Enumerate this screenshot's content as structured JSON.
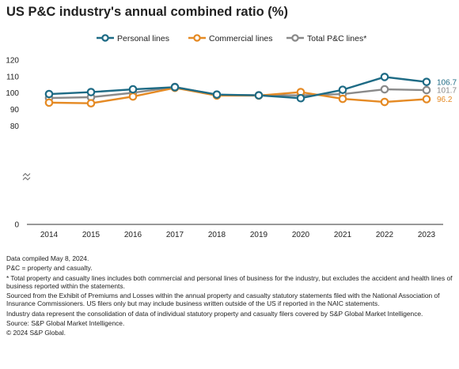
{
  "title": "US P&C industry's annual combined ratio (%)",
  "chart_data": {
    "type": "line",
    "categories": [
      "2014",
      "2015",
      "2016",
      "2017",
      "2018",
      "2019",
      "2020",
      "2021",
      "2022",
      "2023"
    ],
    "series": [
      {
        "name": "Personal lines",
        "color": "#1e6b85",
        "values": [
          99.3,
          100.5,
          102.2,
          103.5,
          99.0,
          98.5,
          96.8,
          101.9,
          109.7,
          106.7
        ]
      },
      {
        "name": "Commercial lines",
        "color": "#e58a24",
        "values": [
          94.1,
          93.7,
          97.8,
          103.1,
          98.4,
          98.4,
          100.5,
          96.4,
          94.5,
          96.2
        ]
      },
      {
        "name": "Total P&C lines*",
        "color": "#8a8a8a",
        "values": [
          96.9,
          97.4,
          100.1,
          103.6,
          98.8,
          98.6,
          98.5,
          99.3,
          102.2,
          101.7
        ]
      }
    ],
    "end_labels": [
      "106.7",
      "101.7",
      "96.2"
    ],
    "y_ticks": [
      "0",
      "80",
      "90",
      "100",
      "110",
      "120"
    ],
    "ylim": [
      80,
      120
    ],
    "axis_break": true,
    "legend_position": "top",
    "grid": false
  },
  "notes": [
    "Data compiled May 8, 2024.",
    "P&C = property and casualty.",
    "* Total property and casualty lines includes both commercial and personal lines of business for the industry, but excludes the accident and health lines of business reported within the statements.",
    "Sourced from the Exhibit of Premiums and Losses within the annual property and casualty statutory statements filed with the National Association of Insurance Commissioners. US filers only but may include business written outside of the US if reported in the NAIC statements.",
    "Industry data represent the consolidation of data of individual statutory property and casualty filers covered by S&P Global Market Intelligence.",
    "Source: S&P Global Market Intelligence.",
    "© 2024 S&P Global."
  ]
}
